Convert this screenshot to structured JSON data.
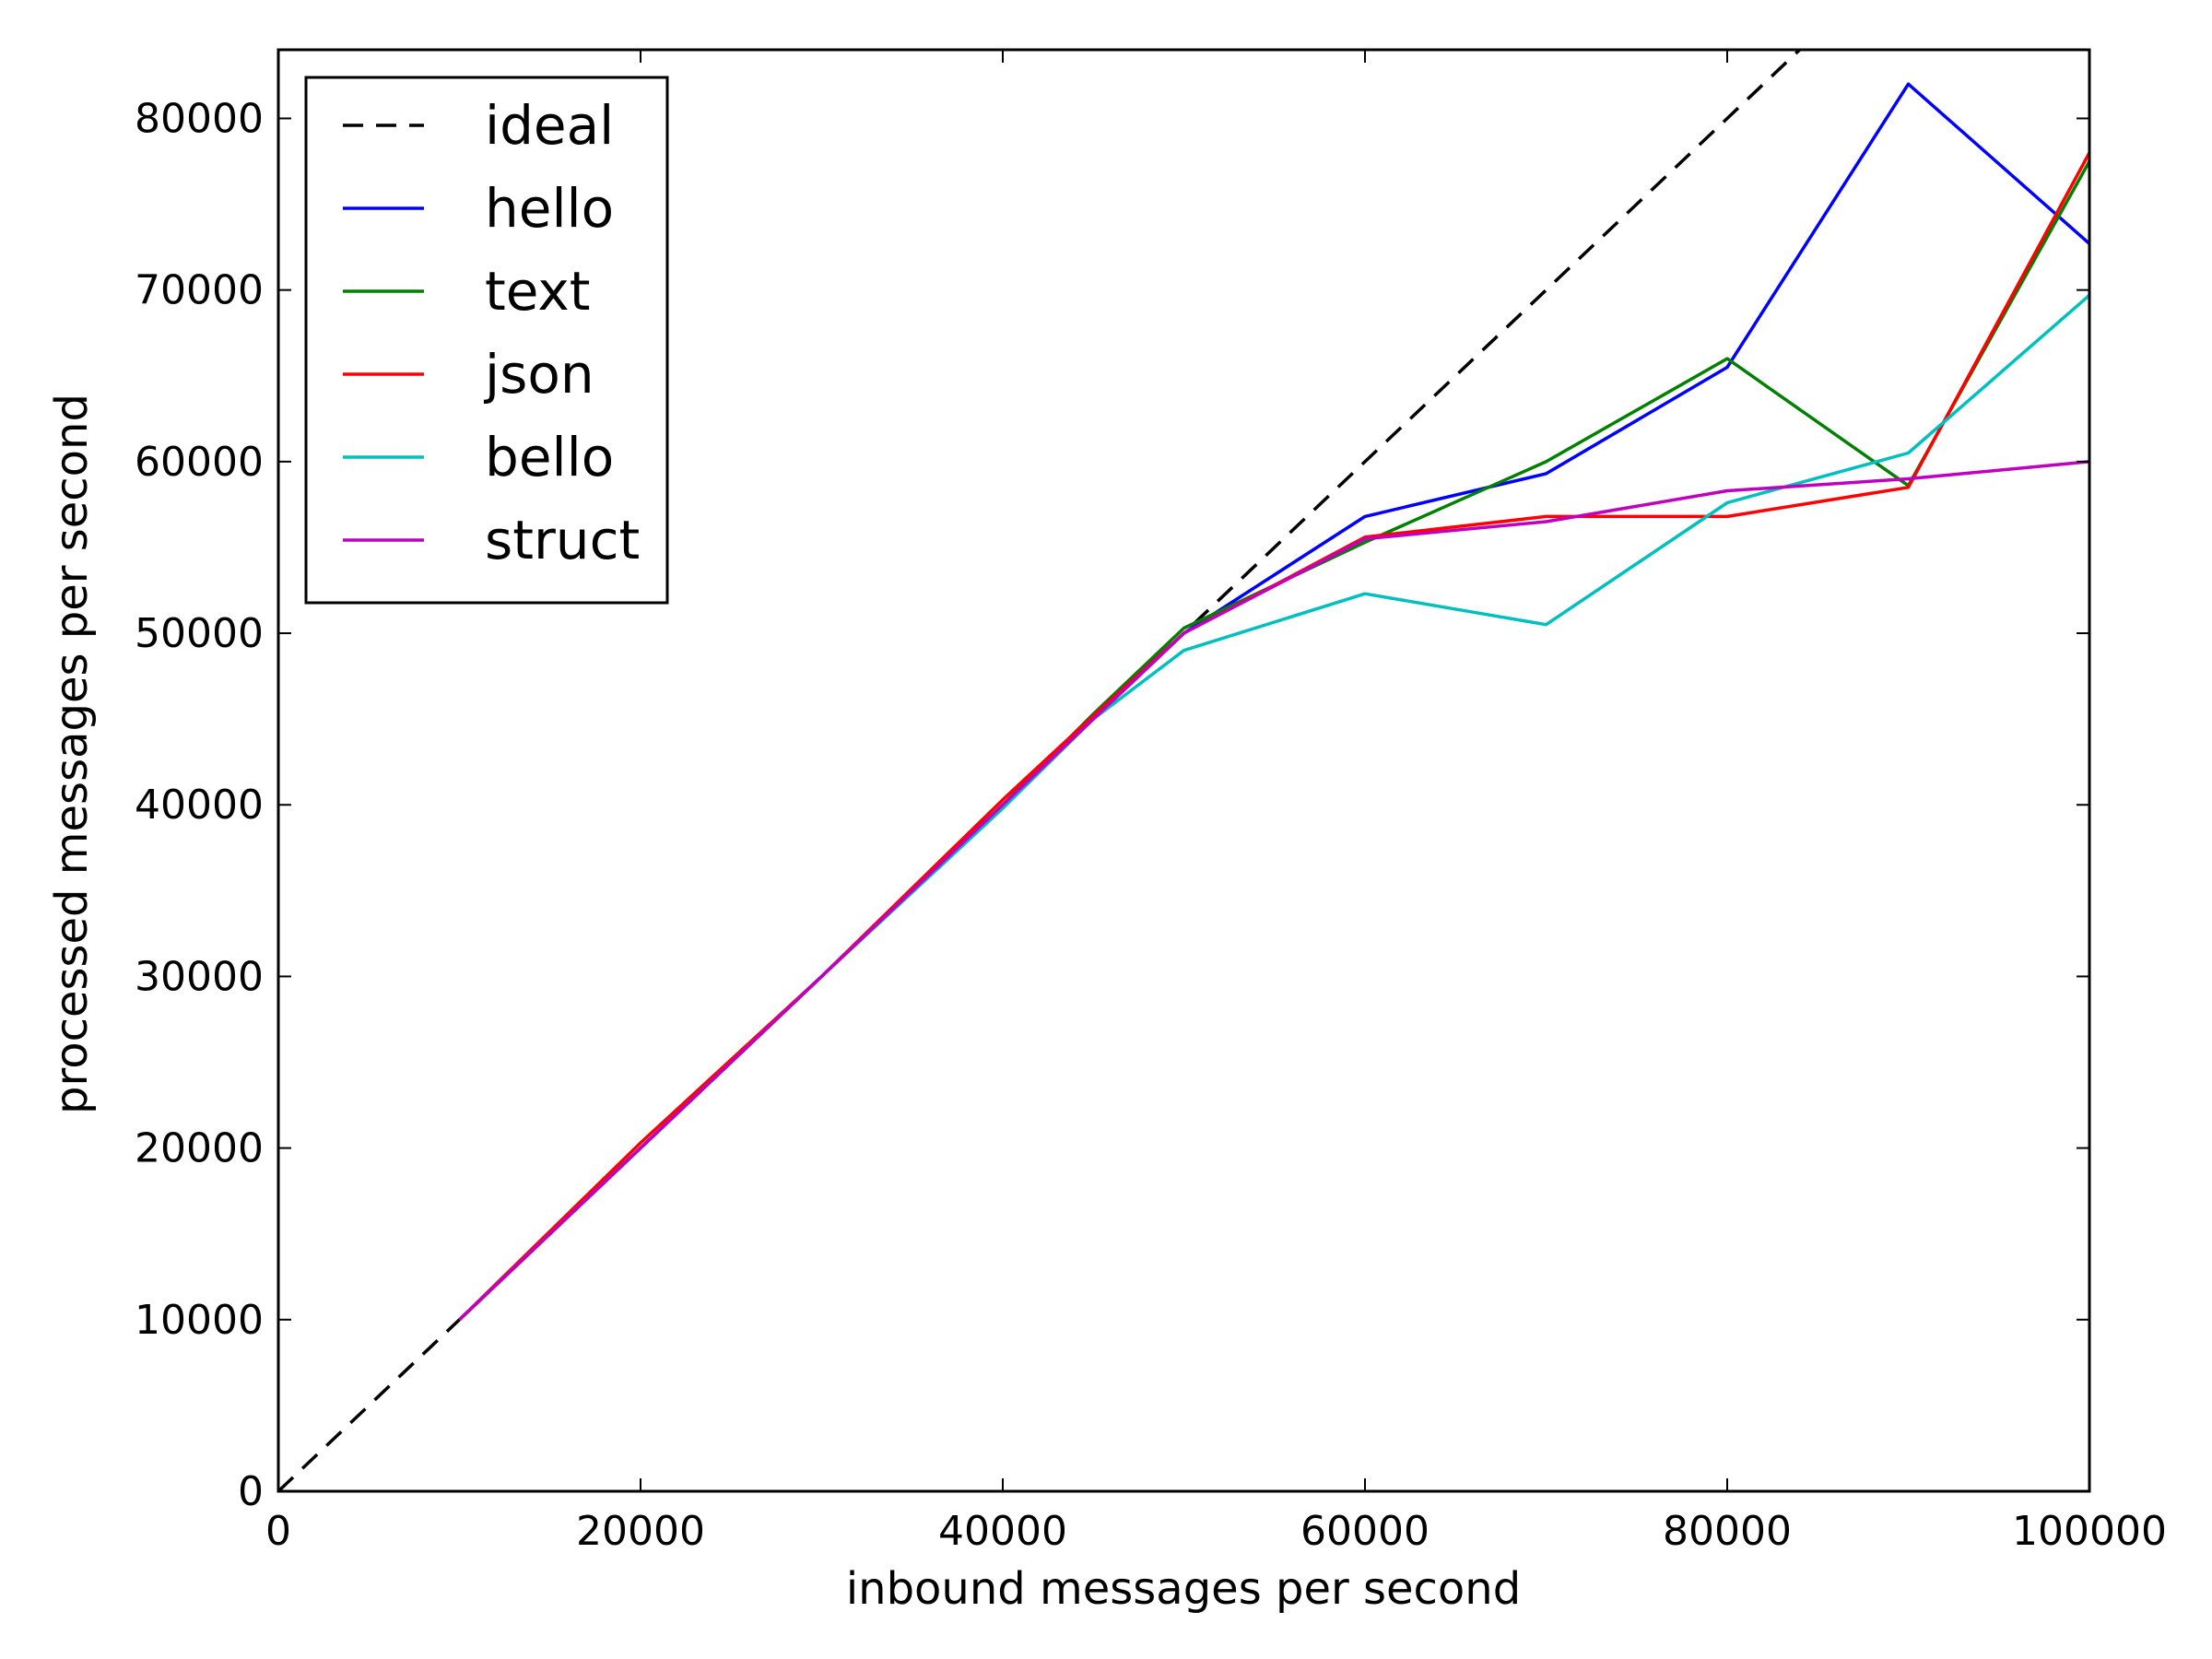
{
  "chart_data": {
    "type": "line",
    "xlabel": "inbound messages per second",
    "ylabel": "processed messages per second",
    "xlim": [
      0,
      100000
    ],
    "ylim": [
      0,
      84000
    ],
    "xticks": [
      0,
      20000,
      40000,
      60000,
      80000,
      100000
    ],
    "yticks": [
      0,
      10000,
      20000,
      30000,
      40000,
      50000,
      60000,
      70000,
      80000
    ],
    "grid": false,
    "legend_position": "top-left",
    "series": [
      {
        "name": "ideal",
        "color": "#000000",
        "dashed": true,
        "x": [
          0,
          100000
        ],
        "y": [
          0,
          100000
        ]
      },
      {
        "name": "hello",
        "color": "#0000ff",
        "dashed": false,
        "x": [
          10000,
          20000,
          30000,
          40000,
          45000,
          50000,
          60000,
          70000,
          80000,
          90000,
          100000
        ],
        "y": [
          10000,
          20000,
          30000,
          40000,
          45000,
          50000,
          56800,
          59300,
          65500,
          82000,
          72700
        ]
      },
      {
        "name": "text",
        "color": "#008000",
        "dashed": false,
        "x": [
          10000,
          20000,
          30000,
          40000,
          45000,
          50000,
          60000,
          70000,
          80000,
          90000,
          100000
        ],
        "y": [
          10000,
          20000,
          30000,
          40000,
          45300,
          50300,
          55300,
          60000,
          66000,
          58600,
          77500
        ]
      },
      {
        "name": "json",
        "color": "#ff0000",
        "dashed": false,
        "x": [
          10000,
          20000,
          30000,
          40000,
          45000,
          50000,
          60000,
          70000,
          80000,
          90000,
          100000
        ],
        "y": [
          10000,
          20300,
          30000,
          40300,
          45200,
          50000,
          55600,
          56800,
          56800,
          58500,
          78000
        ]
      },
      {
        "name": "bello",
        "color": "#00bfbf",
        "dashed": false,
        "x": [
          10000,
          20000,
          30000,
          40000,
          45000,
          50000,
          60000,
          70000,
          80000,
          90000,
          100000
        ],
        "y": [
          10000,
          20000,
          30000,
          39800,
          45000,
          49000,
          52300,
          50500,
          57600,
          60500,
          69700
        ]
      },
      {
        "name": "struct",
        "color": "#bf00bf",
        "dashed": false,
        "x": [
          10000,
          20000,
          30000,
          40000,
          45000,
          50000,
          60000,
          70000,
          80000,
          90000,
          100000
        ],
        "y": [
          10000,
          20000,
          30000,
          40000,
          45000,
          50000,
          55500,
          56500,
          58300,
          59000,
          60000
        ]
      }
    ]
  }
}
